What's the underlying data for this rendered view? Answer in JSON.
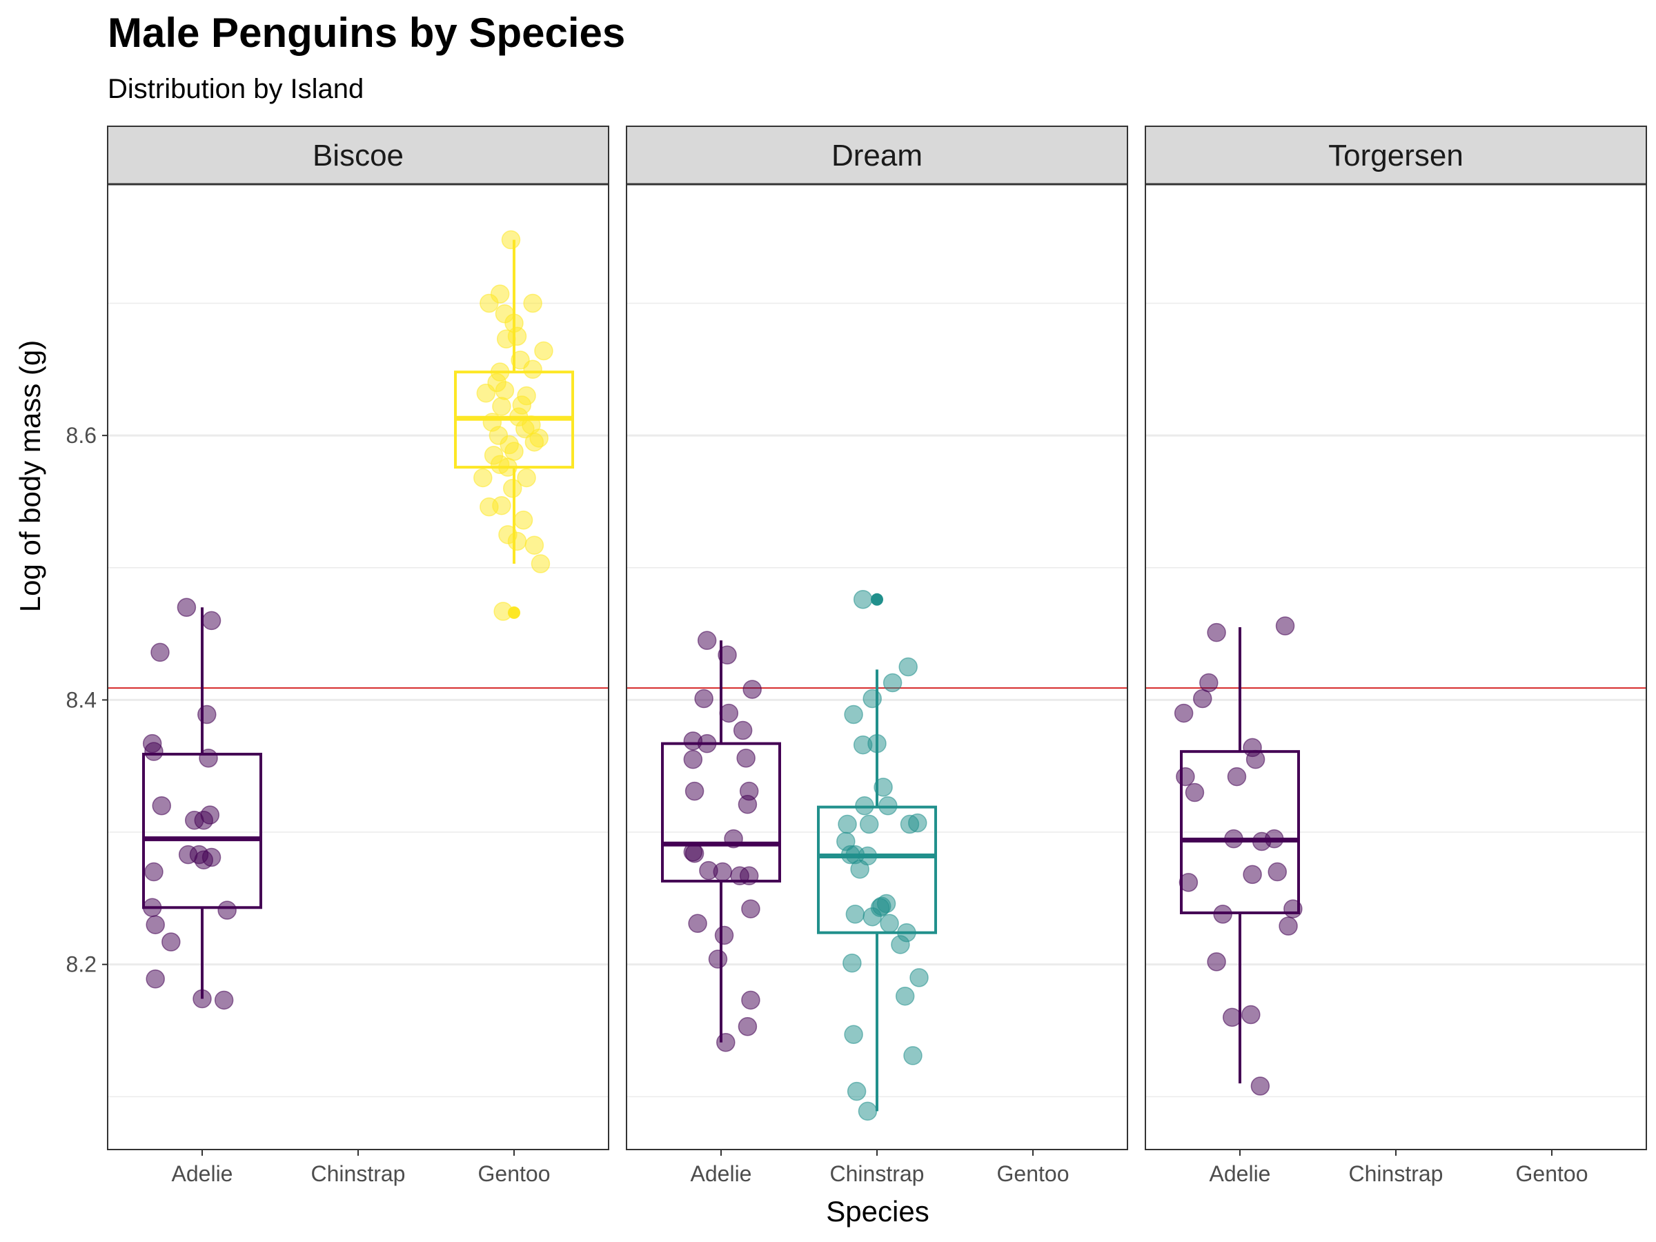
{
  "chart_data": {
    "type": "boxplot-jitter",
    "title": "Male Penguins by Species",
    "subtitle": "Distribution by Island",
    "xlabel": "Species",
    "ylabel": "Log of body mass (g)",
    "ylim": [
      8.06,
      8.79
    ],
    "y_ticks": [
      8.2,
      8.4,
      8.6
    ],
    "y_tick_labels": [
      "8.2",
      "8.4",
      "8.6"
    ],
    "categories": [
      "Adelie",
      "Chinstrap",
      "Gentoo"
    ],
    "reference_line": {
      "y": 8.409,
      "color": "#d62728"
    },
    "colors": {
      "Adelie": "#440154",
      "Chinstrap": "#21908c",
      "Gentoo": "#fde725"
    },
    "panels": [
      {
        "island": "Biscoe",
        "groups": [
          {
            "species": "Adelie",
            "box": {
              "lower_whisker": 8.174,
              "q1": 8.243,
              "median": 8.295,
              "q3": 8.359,
              "upper_whisker": 8.47
            },
            "outliers": [],
            "points": [
              {
                "dx": -0.1,
                "y": 8.47
              },
              {
                "dx": 0.06,
                "y": 8.46
              },
              {
                "dx": -0.27,
                "y": 8.436
              },
              {
                "dx": 0.03,
                "y": 8.389
              },
              {
                "dx": -0.32,
                "y": 8.367
              },
              {
                "dx": -0.31,
                "y": 8.361
              },
              {
                "dx": 0.04,
                "y": 8.356
              },
              {
                "dx": -0.26,
                "y": 8.32
              },
              {
                "dx": 0.05,
                "y": 8.313
              },
              {
                "dx": -0.05,
                "y": 8.309
              },
              {
                "dx": 0.01,
                "y": 8.309
              },
              {
                "dx": -0.09,
                "y": 8.283
              },
              {
                "dx": -0.02,
                "y": 8.283
              },
              {
                "dx": 0.06,
                "y": 8.281
              },
              {
                "dx": -0.31,
                "y": 8.27
              },
              {
                "dx": 0.01,
                "y": 8.279
              },
              {
                "dx": -0.32,
                "y": 8.243
              },
              {
                "dx": 0.16,
                "y": 8.241
              },
              {
                "dx": -0.3,
                "y": 8.23
              },
              {
                "dx": -0.2,
                "y": 8.217
              },
              {
                "dx": -0.3,
                "y": 8.189
              },
              {
                "dx": 0.0,
                "y": 8.174
              },
              {
                "dx": 0.14,
                "y": 8.173
              }
            ]
          },
          {
            "species": "Chinstrap",
            "box": null,
            "outliers": [],
            "points": []
          },
          {
            "species": "Gentoo",
            "box": {
              "lower_whisker": 8.503,
              "q1": 8.576,
              "median": 8.613,
              "q3": 8.648,
              "upper_whisker": 8.748
            },
            "outliers": [
              8.466
            ],
            "points": [
              {
                "dx": -0.02,
                "y": 8.748
              },
              {
                "dx": -0.09,
                "y": 8.707
              },
              {
                "dx": -0.06,
                "y": 8.692
              },
              {
                "dx": 0.0,
                "y": 8.685
              },
              {
                "dx": 0.12,
                "y": 8.7
              },
              {
                "dx": -0.16,
                "y": 8.7
              },
              {
                "dx": 0.02,
                "y": 8.675
              },
              {
                "dx": -0.05,
                "y": 8.673
              },
              {
                "dx": 0.19,
                "y": 8.664
              },
              {
                "dx": 0.04,
                "y": 8.657
              },
              {
                "dx": -0.09,
                "y": 8.648
              },
              {
                "dx": 0.12,
                "y": 8.65
              },
              {
                "dx": -0.11,
                "y": 8.64
              },
              {
                "dx": -0.06,
                "y": 8.634
              },
              {
                "dx": 0.08,
                "y": 8.63
              },
              {
                "dx": -0.08,
                "y": 8.622
              },
              {
                "dx": 0.03,
                "y": 8.614
              },
              {
                "dx": -0.14,
                "y": 8.61
              },
              {
                "dx": 0.07,
                "y": 8.605
              },
              {
                "dx": -0.1,
                "y": 8.6
              },
              {
                "dx": 0.16,
                "y": 8.598
              },
              {
                "dx": 0.13,
                "y": 8.595
              },
              {
                "dx": -0.03,
                "y": 8.593
              },
              {
                "dx": 0.0,
                "y": 8.588
              },
              {
                "dx": -0.13,
                "y": 8.585
              },
              {
                "dx": -0.09,
                "y": 8.578
              },
              {
                "dx": -0.04,
                "y": 8.576
              },
              {
                "dx": 0.08,
                "y": 8.568
              },
              {
                "dx": -0.2,
                "y": 8.568
              },
              {
                "dx": -0.01,
                "y": 8.56
              },
              {
                "dx": -0.08,
                "y": 8.547
              },
              {
                "dx": 0.06,
                "y": 8.536
              },
              {
                "dx": -0.16,
                "y": 8.546
              },
              {
                "dx": -0.04,
                "y": 8.525
              },
              {
                "dx": 0.02,
                "y": 8.52
              },
              {
                "dx": 0.13,
                "y": 8.517
              },
              {
                "dx": 0.17,
                "y": 8.503
              },
              {
                "dx": -0.07,
                "y": 8.467
              },
              {
                "dx": 0.05,
                "y": 8.623
              },
              {
                "dx": -0.18,
                "y": 8.632
              },
              {
                "dx": 0.11,
                "y": 8.608
              }
            ]
          }
        ]
      },
      {
        "island": "Dream",
        "groups": [
          {
            "species": "Adelie",
            "box": {
              "lower_whisker": 8.141,
              "q1": 8.263,
              "median": 8.291,
              "q3": 8.367,
              "upper_whisker": 8.445
            },
            "outliers": [],
            "points": [
              {
                "dx": -0.09,
                "y": 8.445
              },
              {
                "dx": 0.04,
                "y": 8.434
              },
              {
                "dx": 0.2,
                "y": 8.408
              },
              {
                "dx": -0.11,
                "y": 8.401
              },
              {
                "dx": 0.05,
                "y": 8.39
              },
              {
                "dx": 0.14,
                "y": 8.377
              },
              {
                "dx": -0.18,
                "y": 8.369
              },
              {
                "dx": -0.09,
                "y": 8.367
              },
              {
                "dx": 0.16,
                "y": 8.356
              },
              {
                "dx": -0.18,
                "y": 8.355
              },
              {
                "dx": -0.17,
                "y": 8.331
              },
              {
                "dx": 0.18,
                "y": 8.331
              },
              {
                "dx": 0.17,
                "y": 8.321
              },
              {
                "dx": 0.08,
                "y": 8.295
              },
              {
                "dx": -0.18,
                "y": 8.285
              },
              {
                "dx": -0.17,
                "y": 8.284
              },
              {
                "dx": 0.01,
                "y": 8.27
              },
              {
                "dx": 0.12,
                "y": 8.267
              },
              {
                "dx": 0.18,
                "y": 8.267
              },
              {
                "dx": -0.08,
                "y": 8.271
              },
              {
                "dx": 0.19,
                "y": 8.242
              },
              {
                "dx": -0.15,
                "y": 8.231
              },
              {
                "dx": 0.02,
                "y": 8.222
              },
              {
                "dx": -0.02,
                "y": 8.204
              },
              {
                "dx": 0.19,
                "y": 8.173
              },
              {
                "dx": 0.17,
                "y": 8.153
              },
              {
                "dx": 0.03,
                "y": 8.141
              }
            ]
          },
          {
            "species": "Chinstrap",
            "box": {
              "lower_whisker": 8.089,
              "q1": 8.224,
              "median": 8.282,
              "q3": 8.319,
              "upper_whisker": 8.423
            },
            "outliers": [
              8.476
            ],
            "points": [
              {
                "dx": -0.09,
                "y": 8.476
              },
              {
                "dx": 0.2,
                "y": 8.425
              },
              {
                "dx": 0.1,
                "y": 8.413
              },
              {
                "dx": -0.03,
                "y": 8.401
              },
              {
                "dx": -0.15,
                "y": 8.389
              },
              {
                "dx": -0.09,
                "y": 8.366
              },
              {
                "dx": 0.0,
                "y": 8.367
              },
              {
                "dx": 0.04,
                "y": 8.334
              },
              {
                "dx": 0.07,
                "y": 8.32
              },
              {
                "dx": -0.08,
                "y": 8.32
              },
              {
                "dx": 0.21,
                "y": 8.306
              },
              {
                "dx": 0.26,
                "y": 8.307
              },
              {
                "dx": -0.19,
                "y": 8.306
              },
              {
                "dx": -0.05,
                "y": 8.306
              },
              {
                "dx": -0.2,
                "y": 8.293
              },
              {
                "dx": -0.17,
                "y": 8.283
              },
              {
                "dx": -0.14,
                "y": 8.283
              },
              {
                "dx": -0.06,
                "y": 8.282
              },
              {
                "dx": -0.11,
                "y": 8.272
              },
              {
                "dx": 0.03,
                "y": 8.244
              },
              {
                "dx": 0.06,
                "y": 8.246
              },
              {
                "dx": 0.02,
                "y": 8.243
              },
              {
                "dx": -0.14,
                "y": 8.238
              },
              {
                "dx": -0.03,
                "y": 8.236
              },
              {
                "dx": 0.08,
                "y": 8.231
              },
              {
                "dx": 0.19,
                "y": 8.224
              },
              {
                "dx": 0.15,
                "y": 8.215
              },
              {
                "dx": -0.16,
                "y": 8.201
              },
              {
                "dx": 0.27,
                "y": 8.19
              },
              {
                "dx": 0.18,
                "y": 8.176
              },
              {
                "dx": -0.15,
                "y": 8.147
              },
              {
                "dx": 0.23,
                "y": 8.131
              },
              {
                "dx": -0.13,
                "y": 8.104
              },
              {
                "dx": -0.06,
                "y": 8.089
              }
            ]
          },
          {
            "species": "Gentoo",
            "box": null,
            "outliers": [],
            "points": []
          }
        ]
      },
      {
        "island": "Torgersen",
        "groups": [
          {
            "species": "Adelie",
            "box": {
              "lower_whisker": 8.11,
              "q1": 8.239,
              "median": 8.294,
              "q3": 8.361,
              "upper_whisker": 8.455
            },
            "outliers": [],
            "points": [
              {
                "dx": 0.29,
                "y": 8.456
              },
              {
                "dx": -0.15,
                "y": 8.451
              },
              {
                "dx": -0.2,
                "y": 8.413
              },
              {
                "dx": -0.24,
                "y": 8.401
              },
              {
                "dx": -0.36,
                "y": 8.39
              },
              {
                "dx": 0.08,
                "y": 8.364
              },
              {
                "dx": 0.1,
                "y": 8.355
              },
              {
                "dx": -0.35,
                "y": 8.342
              },
              {
                "dx": -0.02,
                "y": 8.342
              },
              {
                "dx": -0.29,
                "y": 8.33
              },
              {
                "dx": 0.22,
                "y": 8.295
              },
              {
                "dx": -0.04,
                "y": 8.295
              },
              {
                "dx": 0.14,
                "y": 8.293
              },
              {
                "dx": -0.33,
                "y": 8.262
              },
              {
                "dx": 0.24,
                "y": 8.27
              },
              {
                "dx": 0.08,
                "y": 8.268
              },
              {
                "dx": 0.34,
                "y": 8.242
              },
              {
                "dx": -0.11,
                "y": 8.238
              },
              {
                "dx": 0.31,
                "y": 8.229
              },
              {
                "dx": -0.15,
                "y": 8.202
              },
              {
                "dx": 0.07,
                "y": 8.162
              },
              {
                "dx": -0.05,
                "y": 8.16
              },
              {
                "dx": 0.13,
                "y": 8.108
              }
            ]
          },
          {
            "species": "Chinstrap",
            "box": null,
            "outliers": [],
            "points": []
          },
          {
            "species": "Gentoo",
            "box": null,
            "outliers": [],
            "points": []
          }
        ]
      }
    ]
  }
}
